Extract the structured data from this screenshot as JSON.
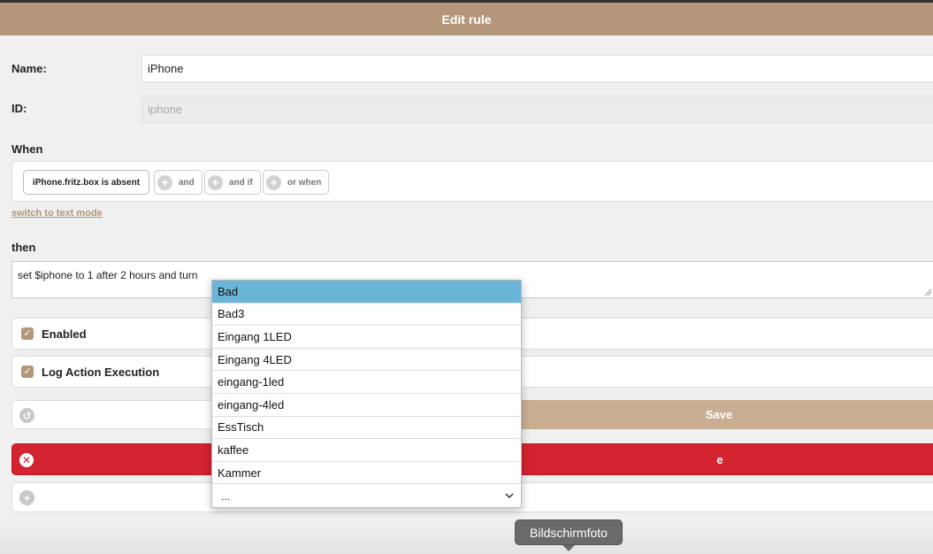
{
  "header": {
    "title": "Edit rule"
  },
  "form": {
    "name_label": "Name:",
    "name_value": "iPhone",
    "id_label": "ID:",
    "id_value": "iphone",
    "when_label": "When",
    "condition": "iPhone.fritz.box is absent",
    "add_and": "and",
    "add_and_if": "and if",
    "add_or_when": "or when",
    "switch_link": "switch to text mode",
    "then_label": "then",
    "then_text": "set $iphone to 1 after 2 hours and turn",
    "enabled_label": "Enabled",
    "log_label": "Log Action Execution",
    "save_label": "Save",
    "delete_label_visible": "e"
  },
  "dropdown": {
    "items": [
      "Bad",
      "Bad3",
      "Eingang 1LED",
      "Eingang 4LED",
      "eingang-1led",
      "eingang-4led",
      "EssTisch",
      "kaffee",
      "Kammer"
    ],
    "selected_index": 0,
    "more_label": "...",
    "more_icon": "chevron-down-icon"
  },
  "tooltip": {
    "text": "Bildschirmfoto"
  },
  "colors": {
    "accent": "#b4967a",
    "save": "#c9ae94",
    "danger": "#d32330",
    "selected": "#6ab5d8"
  },
  "icons": [
    "plus-icon",
    "undo-icon",
    "close-icon",
    "check-icon",
    "chevron-down-icon",
    "resize-grip-icon"
  ]
}
